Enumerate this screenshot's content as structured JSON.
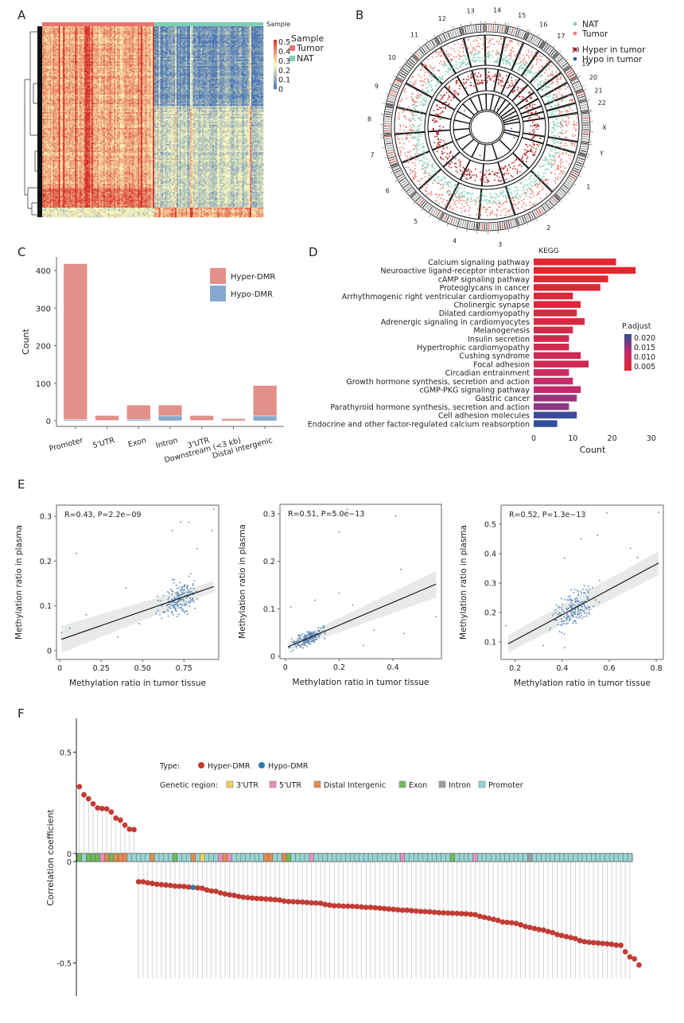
{
  "panels": {
    "A": "A",
    "B": "B",
    "C": "C",
    "D": "D",
    "E": "E",
    "F": "F"
  },
  "chart_data": [
    {
      "id": "A",
      "type": "heatmap",
      "title": "",
      "annotation_label": "Sample",
      "legend_title": "Sample",
      "legend": [
        {
          "name": "Tumor",
          "color": "#e8736c"
        },
        {
          "name": "NAT",
          "color": "#7fcfb6"
        }
      ],
      "colorbar": {
        "ticks": [
          "0.5",
          "0.4",
          "0.3",
          "0.2",
          "0.1",
          "0"
        ],
        "low_color": "#4a74b4",
        "mid_color": "#fdfbc0",
        "high_color": "#d73027",
        "range": [
          0,
          0.5
        ]
      },
      "groups": [
        {
          "name": "Tumor",
          "n_columns": 75
        },
        {
          "name": "NAT",
          "n_columns": 73
        }
      ],
      "row_clusters": [
        {
          "rows": 0.42,
          "tumor": "high",
          "nat": "low"
        },
        {
          "rows": 0.43,
          "tumor": "high",
          "nat": "mid"
        },
        {
          "rows": 0.1,
          "tumor": "very_high",
          "nat": "mid"
        },
        {
          "rows": 0.05,
          "tumor": "mid",
          "nat": "high"
        }
      ]
    },
    {
      "id": "B",
      "type": "scatter",
      "subtype": "circos",
      "chromosomes": [
        "1",
        "2",
        "3",
        "4",
        "5",
        "6",
        "7",
        "8",
        "9",
        "10",
        "11",
        "12",
        "13",
        "14",
        "15",
        "16",
        "17",
        "18",
        "19",
        "20",
        "21",
        "22",
        "X",
        "Y"
      ],
      "legend": [
        {
          "name": "NAT",
          "color": "#7fcfb6"
        },
        {
          "name": "Tumor",
          "color": "#ee7a6e"
        },
        {
          "name": "Hyper in tumor",
          "color": "#b22222"
        },
        {
          "name": "Hypo in tumor",
          "color": "#2c5ea8"
        }
      ]
    },
    {
      "id": "C",
      "type": "bar",
      "stacked": true,
      "title": "",
      "xlabel": "",
      "ylabel": "Count",
      "ylim": [
        0,
        430
      ],
      "yticks": [
        0,
        100,
        200,
        300,
        400
      ],
      "categories": [
        "Promoter",
        "5'UTR",
        "Exon",
        "Intron",
        "3'UTR",
        "Downstream (<3 kb)",
        "Distal intergenic"
      ],
      "series": [
        {
          "name": "Hypo-DMR",
          "color": "#87a9d0",
          "values": [
            3,
            1,
            4,
            13,
            1,
            0,
            13
          ]
        },
        {
          "name": "Hyper-DMR",
          "color": "#e38f8a",
          "values": [
            415,
            13,
            38,
            29,
            13,
            6,
            81
          ]
        }
      ],
      "legend_position": "top-right"
    },
    {
      "id": "D",
      "type": "bar",
      "orientation": "horizontal",
      "title": "KEGG",
      "xlabel": "Count",
      "ylabel": "",
      "xlim": [
        0,
        30
      ],
      "xticks": [
        0,
        10,
        20,
        30
      ],
      "categories": [
        "Calcium signaling pathway",
        "Neuroactive ligand-receptor interaction",
        "cAMP signaling pathway",
        "Proteoglycans in cancer",
        "Arrhythmogenic right ventricular cardiomyopathy",
        "Cholinergic synapse",
        "Dilated cardiomyopathy",
        "Adrenergic signaling in cardiomyocytes",
        "Melanogenesis",
        "Insulin secretion",
        "Hypertrophic cardiomyopathy",
        "Cushing syndrome",
        "Focal adhesion",
        "Circadian entrainment",
        "Growth hormone synthesis, secretion and action",
        "cGMP-PKG signaling pathway",
        "Gastric cancer",
        "Parathyroid hormone synthesis, secretion and action",
        "Cell adhesion molecules",
        "Endocrine and other factor-regulated calcium reabsorption"
      ],
      "values": [
        21,
        26,
        19,
        17,
        10,
        12,
        11,
        13,
        10,
        9,
        9,
        12,
        14,
        9,
        10,
        12,
        11,
        9,
        11,
        6
      ],
      "p_adjust": [
        0.002,
        0.002,
        0.003,
        0.003,
        0.004,
        0.004,
        0.004,
        0.005,
        0.006,
        0.007,
        0.007,
        0.008,
        0.008,
        0.01,
        0.011,
        0.012,
        0.015,
        0.016,
        0.021,
        0.022
      ],
      "colorbar": {
        "title": "P.adjust",
        "ticks": [
          "0.020",
          "0.015",
          "0.010",
          "0.005"
        ],
        "low_color": "#e0282e",
        "high_color": "#2f4f9a",
        "range": [
          0.002,
          0.022
        ]
      }
    },
    {
      "id": "E1",
      "type": "scatter",
      "annotation": "R=0.43, P=2.2e−09",
      "xlabel": "Methylation ratio in tumor tissue",
      "ylabel": "Methylation ratio in plasma",
      "xlim": [
        -0.02,
        0.96
      ],
      "ylim": [
        -0.02,
        0.325
      ],
      "xticks": [
        "0",
        "0.25",
        "0.50",
        "0.75"
      ],
      "xtick_values": [
        0,
        0.25,
        0.5,
        0.75
      ],
      "yticks": [
        "0",
        "0.1",
        "0.2",
        "0.3"
      ],
      "ytick_values": [
        0,
        0.1,
        0.2,
        0.3
      ],
      "fit": {
        "x0": 0.01,
        "y0": 0.025,
        "x1": 0.93,
        "y1": 0.143,
        "ci_start": 0.03,
        "ci_end": 0.012
      },
      "point_color": "#5b86b8",
      "cloud": {
        "n": 190,
        "x_center": 0.72,
        "x_spread": 0.1,
        "y_center": 0.11,
        "y_spread": 0.035
      },
      "outliers": [
        [
          0.01,
          0.04
        ],
        [
          0.06,
          0.05
        ],
        [
          0.1,
          0.217
        ],
        [
          0.16,
          0.08
        ],
        [
          0.35,
          0.03
        ],
        [
          0.4,
          0.14
        ],
        [
          0.48,
          0.06
        ],
        [
          0.73,
          0.287
        ],
        [
          0.78,
          0.287
        ],
        [
          0.68,
          0.268
        ],
        [
          0.92,
          0.268
        ],
        [
          0.93,
          0.316
        ],
        [
          0.83,
          0.228
        ]
      ]
    },
    {
      "id": "E2",
      "type": "scatter",
      "annotation": "R=0.51, P=5.0e−13",
      "xlabel": "Methylation ratio in tumor tissue",
      "ylabel": "Methylation ratio in plasma",
      "xlim": [
        -0.02,
        0.58
      ],
      "ylim": [
        -0.005,
        0.32
      ],
      "xticks": [
        "0",
        "0.2",
        "0.4"
      ],
      "xtick_values": [
        0,
        0.2,
        0.4
      ],
      "yticks": [
        "0",
        "0.1",
        "0.2",
        "0.3"
      ],
      "ytick_values": [
        0,
        0.1,
        0.2,
        0.3
      ],
      "fit": {
        "x0": 0.01,
        "y0": 0.02,
        "x1": 0.56,
        "y1": 0.152,
        "ci_start": 0.008,
        "ci_end": 0.028
      },
      "point_color": "#5b86b8",
      "cloud": {
        "n": 190,
        "x_center": 0.08,
        "x_spread": 0.06,
        "y_center": 0.03,
        "y_spread": 0.015
      },
      "outliers": [
        [
          0.2,
          0.262
        ],
        [
          0.23,
          0.31
        ],
        [
          0.41,
          0.295
        ],
        [
          0.43,
          0.183
        ],
        [
          0.2,
          0.133
        ],
        [
          0.56,
          0.083
        ],
        [
          0.44,
          0.048
        ],
        [
          0.33,
          0.055
        ],
        [
          0.29,
          0.023
        ],
        [
          0.25,
          0.108
        ],
        [
          0.02,
          0.104
        ],
        [
          0.11,
          0.118
        ]
      ]
    },
    {
      "id": "E3",
      "type": "scatter",
      "annotation": "R=0.52, P=1.3e−13",
      "xlabel": "Methylation ratio in tumor tissue",
      "ylabel": "Methylation ratio in plasma",
      "xlim": [
        0.14,
        0.83
      ],
      "ylim": [
        0.04,
        0.565
      ],
      "xticks": [
        "0.2",
        "0.4",
        "0.6",
        "0.8"
      ],
      "xtick_values": [
        0.2,
        0.4,
        0.6,
        0.8
      ],
      "yticks": [
        "0.1",
        "0.2",
        "0.3",
        "0.4",
        "0.5"
      ],
      "ytick_values": [
        0.1,
        0.2,
        0.3,
        0.4,
        0.5
      ],
      "fit": {
        "x0": 0.17,
        "y0": 0.093,
        "x1": 0.81,
        "y1": 0.368,
        "ci_start": 0.03,
        "ci_end": 0.04
      },
      "point_color": "#5b86b8",
      "cloud": {
        "n": 180,
        "x_center": 0.45,
        "x_spread": 0.09,
        "y_center": 0.2,
        "y_spread": 0.055
      },
      "outliers": [
        [
          0.16,
          0.155
        ],
        [
          0.59,
          0.538
        ],
        [
          0.81,
          0.54
        ],
        [
          0.55,
          0.463
        ],
        [
          0.48,
          0.45
        ],
        [
          0.69,
          0.418
        ],
        [
          0.72,
          0.387
        ],
        [
          0.41,
          0.385
        ],
        [
          0.41,
          0.08
        ],
        [
          0.32,
          0.088
        ]
      ]
    },
    {
      "id": "F",
      "type": "scatter",
      "subtype": "lollipop",
      "ylabel": "Correlation coefficient",
      "yticks_top": [
        "0.5",
        "0"
      ],
      "yticks_bottom": [
        "0",
        "-0.5"
      ],
      "ylim_top": [
        0,
        0.65
      ],
      "ylim_bottom": [
        -0.63,
        0
      ],
      "legend_type_label": "Type:",
      "legend_type": [
        {
          "name": "Hyper-DMR",
          "color": "#c23b34"
        },
        {
          "name": "Hypo-DMR",
          "color": "#2d7bab"
        }
      ],
      "legend_region_label": "Genetic region:",
      "legend_region": [
        {
          "name": "3'UTR",
          "color": "#f2cf63"
        },
        {
          "name": "5'UTR",
          "color": "#e88fbd"
        },
        {
          "name": "Distal Intergenic",
          "color": "#e58a4c"
        },
        {
          "name": "Exon",
          "color": "#6dbb5a"
        },
        {
          "name": "Intron",
          "color": "#9e9e9e"
        },
        {
          "name": "Promoter",
          "color": "#97d4d4"
        }
      ],
      "positive_values": [
        0.33,
        0.29,
        0.27,
        0.245,
        0.225,
        0.222,
        0.22,
        0.205,
        0.175,
        0.165,
        0.14,
        0.12,
        0.118
      ],
      "negative_values": [
        -0.1,
        -0.1,
        -0.105,
        -0.108,
        -0.112,
        -0.114,
        -0.116,
        -0.118,
        -0.121,
        -0.122,
        -0.123,
        -0.126,
        -0.128,
        -0.13,
        -0.132,
        -0.14,
        -0.145,
        -0.147,
        -0.155,
        -0.16,
        -0.164,
        -0.167,
        -0.172,
        -0.176,
        -0.178,
        -0.18,
        -0.182,
        -0.183,
        -0.185,
        -0.186,
        -0.188,
        -0.19,
        -0.195,
        -0.197,
        -0.198,
        -0.199,
        -0.2,
        -0.202,
        -0.204,
        -0.205,
        -0.206,
        -0.212,
        -0.215,
        -0.218,
        -0.218,
        -0.22,
        -0.22,
        -0.221,
        -0.222,
        -0.224,
        -0.226,
        -0.226,
        -0.228,
        -0.23,
        -0.232,
        -0.234,
        -0.236,
        -0.238,
        -0.24,
        -0.24,
        -0.242,
        -0.244,
        -0.246,
        -0.247,
        -0.248,
        -0.25,
        -0.252,
        -0.253,
        -0.254,
        -0.255,
        -0.256,
        -0.257,
        -0.258,
        -0.26,
        -0.262,
        -0.27,
        -0.275,
        -0.28,
        -0.285,
        -0.29,
        -0.298,
        -0.3,
        -0.302,
        -0.305,
        -0.312,
        -0.32,
        -0.325,
        -0.33,
        -0.335,
        -0.338,
        -0.345,
        -0.35,
        -0.36,
        -0.365,
        -0.37,
        -0.375,
        -0.38,
        -0.39,
        -0.395,
        -0.398,
        -0.4,
        -0.402,
        -0.404,
        -0.406,
        -0.408,
        -0.412,
        -0.413,
        -0.445,
        -0.47,
        -0.48,
        -0.51
      ],
      "hypo_index_negative": 12,
      "regions": [
        "Exon",
        "Promoter",
        "Exon",
        "Exon",
        "Exon",
        "5'UTR",
        "Distal Intergenic",
        "Exon",
        "Distal Intergenic",
        "Distal Intergenic",
        "Distal Intergenic",
        "Promoter",
        "Promoter",
        "Promoter",
        "Promoter",
        "Promoter",
        "Distal Intergenic",
        "Promoter",
        "Promoter",
        "Promoter",
        "Promoter",
        "Exon",
        "Promoter",
        "Promoter",
        "Promoter",
        "Distal Intergenic",
        "Promoter",
        "3'UTR",
        "Promoter",
        "Promoter",
        "Promoter",
        "5'UTR",
        "Distal Intergenic",
        "5'UTR",
        "Promoter",
        "Promoter",
        "Promoter",
        "Promoter",
        "Promoter",
        "Promoter",
        "Promoter",
        "Distal Intergenic",
        "Distal Intergenic",
        "Promoter",
        "Promoter",
        "Distal Intergenic",
        "Exon",
        "Promoter",
        "Promoter",
        "Promoter",
        "Promoter",
        "5'UTR",
        "Promoter",
        "Promoter",
        "Promoter",
        "Promoter",
        "Promoter",
        "Promoter",
        "Promoter",
        "Promoter",
        "Promoter",
        "Promoter",
        "Promoter",
        "Promoter",
        "Promoter",
        "Promoter",
        "Promoter",
        "Promoter",
        "Promoter",
        "Promoter",
        "Promoter",
        "5'UTR",
        "Promoter",
        "Promoter",
        "Promoter",
        "Promoter",
        "Promoter",
        "Promoter",
        "Promoter",
        "Promoter",
        "Promoter",
        "Promoter",
        "Exon",
        "Promoter",
        "Promoter",
        "Promoter",
        "Promoter",
        "5'UTR",
        "Promoter",
        "Promoter",
        "Promoter",
        "Promoter",
        "Promoter",
        "Promoter",
        "Promoter",
        "Promoter",
        "Promoter",
        "Promoter",
        "Promoter",
        "Intron",
        "Promoter",
        "Promoter",
        "Promoter",
        "Promoter",
        "Promoter",
        "Promoter",
        "Promoter",
        "Promoter",
        "Promoter",
        "Promoter",
        "Promoter",
        "Promoter",
        "Promoter",
        "Promoter",
        "Promoter",
        "Promoter",
        "Promoter",
        "Promoter",
        "Promoter",
        "Promoter",
        "Promoter",
        "Promoter"
      ]
    }
  ]
}
